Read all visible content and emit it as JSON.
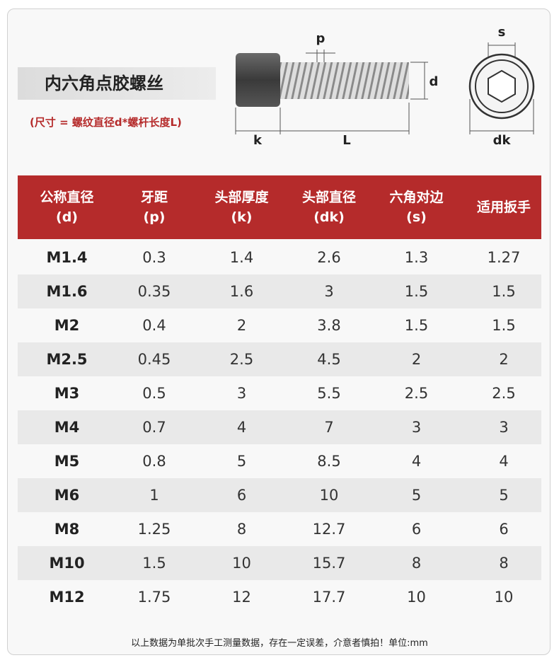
{
  "header": {
    "title": "内六角点胶螺丝",
    "subtitle": "(尺寸 = 螺纹直径d*螺杆长度L)"
  },
  "diagram": {
    "p": "p",
    "d": "d",
    "k": "k",
    "L": "L",
    "s": "s",
    "dk": "dk"
  },
  "table": {
    "columns": [
      [
        "公称直径",
        "(d)"
      ],
      [
        "牙距",
        "(p)"
      ],
      [
        "头部厚度",
        "(k)"
      ],
      [
        "头部直径",
        "(dk)"
      ],
      [
        "六角对边",
        "(s)"
      ],
      [
        "适用扳手"
      ]
    ],
    "rows": [
      [
        "M1.4",
        0.3,
        1.4,
        2.6,
        1.3,
        1.27
      ],
      [
        "M1.6",
        0.35,
        1.6,
        3,
        1.5,
        1.5
      ],
      [
        "M2",
        0.4,
        2,
        3.8,
        1.5,
        1.5
      ],
      [
        "M2.5",
        0.45,
        2.5,
        4.5,
        2,
        2
      ],
      [
        "M3",
        0.5,
        3,
        5.5,
        2.5,
        2.5
      ],
      [
        "M4",
        0.7,
        4,
        7,
        3,
        3
      ],
      [
        "M5",
        0.8,
        5,
        8.5,
        4,
        4
      ],
      [
        "M6",
        1,
        6,
        10,
        5,
        5
      ],
      [
        "M8",
        1.25,
        8,
        12.7,
        6,
        6
      ],
      [
        "M10",
        1.5,
        10,
        15.7,
        8,
        8
      ],
      [
        "M12",
        1.75,
        12,
        17.7,
        10,
        10
      ]
    ]
  },
  "footer": "以上数据为单批次手工测量数据，存在一定误差，介意者慎拍！单位:mm"
}
